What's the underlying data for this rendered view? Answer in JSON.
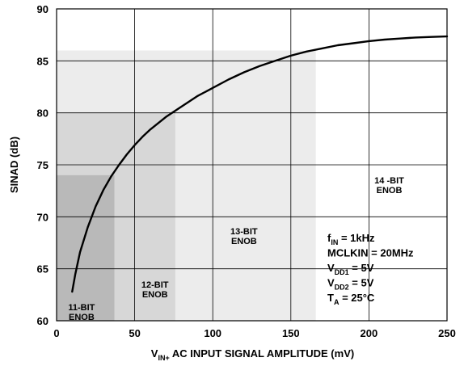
{
  "chart_data": {
    "type": "line",
    "title": "",
    "xlabel": {
      "prefix": "V",
      "sub": "IN+",
      "suffix": " AC INPUT SIGNAL AMPLITUDE (mV)"
    },
    "ylabel": "SINAD (dB)",
    "xlim": [
      0,
      250
    ],
    "ylim": [
      60,
      90
    ],
    "x_ticks": [
      0,
      50,
      100,
      150,
      200,
      250
    ],
    "y_ticks": [
      60,
      65,
      70,
      75,
      80,
      85,
      90
    ],
    "grid": true,
    "series": [
      {
        "x": [
          10,
          12,
          15,
          20,
          25,
          30,
          35,
          40,
          45,
          50,
          55,
          60,
          70,
          80,
          90,
          100,
          110,
          120,
          130,
          140,
          150,
          160,
          170,
          180,
          190,
          200,
          210,
          220,
          230,
          240,
          250
        ],
        "y": [
          62.8,
          64.5,
          66.6,
          69.0,
          71.0,
          72.6,
          73.9,
          75.0,
          76.0,
          76.9,
          77.7,
          78.4,
          79.6,
          80.6,
          81.6,
          82.4,
          83.2,
          83.9,
          84.5,
          85.0,
          85.5,
          85.9,
          86.2,
          86.5,
          86.7,
          86.9,
          87.05,
          87.15,
          87.25,
          87.3,
          87.35
        ]
      }
    ],
    "regions": [
      {
        "label_lines": [
          "14 -BIT",
          "ENOB"
        ],
        "x_max": 250,
        "y_max": 90,
        "color": "#ffffff",
        "label_at": [
          213,
          73.2
        ]
      },
      {
        "label_lines": [
          "13-BIT",
          "ENOB"
        ],
        "x_max": 166,
        "y_max": 86,
        "color": "#ececec",
        "label_at": [
          120,
          68.3
        ]
      },
      {
        "label_lines": [
          "12-BIT",
          "ENOB"
        ],
        "x_max": 76,
        "y_max": 80,
        "color": "#d7d7d7",
        "label_at": [
          63,
          63.2
        ]
      },
      {
        "label_lines": [
          "11-BIT",
          "ENOB"
        ],
        "x_max": 37,
        "y_max": 74,
        "color": "#b9b9b9",
        "label_at": [
          16,
          61.0
        ]
      }
    ],
    "conditions": [
      {
        "main": "f",
        "sub": "IN",
        "rest": " = 1kHz"
      },
      {
        "main": "MCLKIN = 20MHz",
        "sub": "",
        "rest": ""
      },
      {
        "main": "V",
        "sub": "DD1",
        "rest": " = 5V"
      },
      {
        "main": "V",
        "sub": "DD2",
        "rest": " = 5V"
      },
      {
        "main": "T",
        "sub": "A",
        "rest": " = 25°C"
      }
    ]
  }
}
